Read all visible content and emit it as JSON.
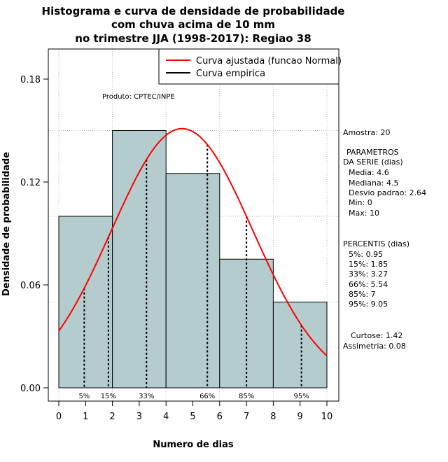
{
  "colors": {
    "bar_fill": "#b4cccd",
    "curve": "#ff0000",
    "empirical": "#000000"
  },
  "chart_data": {
    "type": "bar",
    "title_lines": [
      "Histograma e curva de densidade de probabilidade",
      "com chuva acima de 10 mm",
      "no trimestre JJA (1998-2017): Regiao 38"
    ],
    "xlabel": "Numero de dias",
    "ylabel": "Densidade de probabilidade",
    "xlim": [
      0,
      10
    ],
    "ylim": [
      0,
      0.2
    ],
    "x_ticks": [
      0,
      1,
      2,
      3,
      4,
      5,
      6,
      7,
      8,
      9,
      10
    ],
    "y_ticks": [
      0.0,
      0.06,
      0.12,
      0.18
    ],
    "y_tick_labels": [
      "0.00",
      "0.06",
      "0.12",
      "0.18"
    ],
    "bins": [
      {
        "from": 0,
        "to": 2,
        "density": 0.1
      },
      {
        "from": 2,
        "to": 4,
        "density": 0.15
      },
      {
        "from": 4,
        "to": 6,
        "density": 0.125
      },
      {
        "from": 6,
        "to": 8,
        "density": 0.075
      },
      {
        "from": 8,
        "to": 10,
        "density": 0.05
      }
    ],
    "normal_fit": {
      "mean": 4.6,
      "sd": 2.64
    },
    "percentile_lines": [
      {
        "label": "5%",
        "x": 0.95
      },
      {
        "label": "15%",
        "x": 1.85
      },
      {
        "label": "33%",
        "x": 3.27
      },
      {
        "label": "66%",
        "x": 5.54
      },
      {
        "label": "85%",
        "x": 7
      },
      {
        "label": "95%",
        "x": 9.05
      }
    ],
    "legend": [
      "Curva ajustada (funcao Normal)",
      "Curva empirica"
    ],
    "annotation": "Produto: CPTEC/INPE"
  },
  "side_panel": {
    "sample": "Amostra: 20",
    "params_header": [
      "PARAMETROS",
      "DA SERIE (dias)"
    ],
    "params": [
      "Media: 4.6",
      "Mediana: 4.5",
      "Desvio padrao: 2.64",
      "Min: 0",
      "Max: 10"
    ],
    "percentiles_header": "PERCENTIS (dias)",
    "percentiles": [
      "5%: 0.95",
      "15%: 1.85",
      "33%: 3.27",
      "66%: 5.54",
      "85%: 7",
      "95%: 9.05"
    ],
    "shape": [
      "Curtose: 1.42",
      "Assimetria: 0.08"
    ]
  }
}
